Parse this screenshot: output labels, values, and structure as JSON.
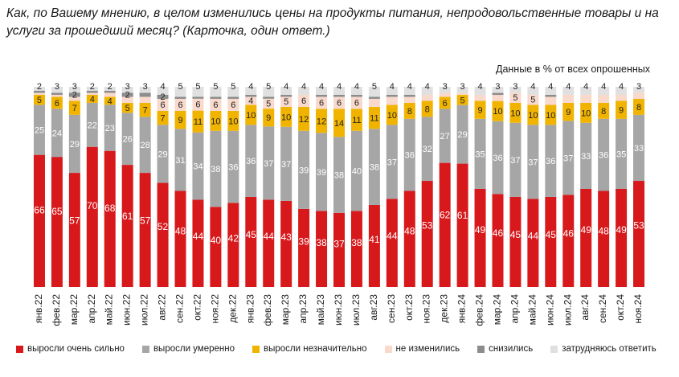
{
  "title": "Как, по Вашему мнению, в целом изменились цены на продукты питания, непродовольственные товары и на услуги за прошедший месяц? (Карточка, один ответ.)",
  "note": "Данные в % от всех опрошенных",
  "chart_data": {
    "type": "bar",
    "stacked": true,
    "ylim": [
      0,
      100
    ],
    "grid": false,
    "legend_position": "bottom",
    "categories": [
      "янв.22",
      "фев.22",
      "мар.22",
      "апр.22",
      "май.22",
      "июн.22",
      "июл.22",
      "авг.22",
      "сен.22",
      "окт.22",
      "ноя.22",
      "дек.22",
      "янв.23",
      "фев.23",
      "мар.23",
      "апр.23",
      "май.23",
      "июн.23",
      "июл.23",
      "авг.23",
      "сен.23",
      "окт.23",
      "ноя.23",
      "дек.23",
      "янв.24",
      "фев.24",
      "мар.24",
      "апр.24",
      "май.24",
      "июн.24",
      "июл.24",
      "авг.24",
      "сен.24",
      "окт.24",
      "ноя.24"
    ],
    "series": [
      {
        "name": "выросли очень сильно",
        "color": "#d7191c",
        "values": [
          66,
          65,
          57,
          70,
          68,
          61,
          57,
          52,
          48,
          44,
          40,
          42,
          45,
          44,
          43,
          39,
          38,
          37,
          38,
          41,
          44,
          48,
          53,
          62,
          61,
          49,
          46,
          45,
          44,
          45,
          46,
          49,
          48,
          49,
          53
        ]
      },
      {
        "name": "выросли умеренно",
        "color": "#a6a6a6",
        "values": [
          25,
          24,
          29,
          22,
          23,
          26,
          28,
          29,
          31,
          34,
          38,
          36,
          36,
          37,
          37,
          39,
          39,
          38,
          40,
          38,
          37,
          36,
          32,
          27,
          29,
          35,
          36,
          37,
          37,
          36,
          37,
          33,
          36,
          35,
          33
        ]
      },
      {
        "name": "выросли незначительно",
        "color": "#f0b400",
        "values": [
          5,
          6,
          7,
          4,
          4,
          5,
          7,
          7,
          9,
          11,
          10,
          10,
          10,
          9,
          10,
          12,
          12,
          14,
          11,
          11,
          10,
          8,
          8,
          6,
          5,
          9,
          10,
          10,
          10,
          10,
          9,
          10,
          8,
          9,
          8
        ]
      },
      {
        "name": "не изменились",
        "color": "#f8d9cc",
        "values": [
          1,
          1,
          2,
          1,
          2,
          3,
          3,
          6,
          6,
          6,
          6,
          6,
          4,
          5,
          5,
          6,
          6,
          6,
          6,
          4,
          4,
          3,
          3,
          2,
          1,
          3,
          3,
          5,
          5,
          4,
          4,
          4,
          4,
          3,
          3
        ]
      },
      {
        "name": "снизились",
        "color": "#8c8c8c",
        "values": [
          1,
          1,
          2,
          1,
          1,
          2,
          2,
          2,
          1,
          1,
          1,
          1,
          1,
          1,
          1,
          0,
          1,
          1,
          1,
          1,
          1,
          1,
          0,
          0,
          0,
          0,
          1,
          0,
          0,
          1,
          0,
          0,
          0,
          0,
          0
        ]
      },
      {
        "name": "затрудняюсь ответить",
        "color": "#e0e0e0",
        "values": [
          2,
          3,
          3,
          2,
          2,
          3,
          3,
          4,
          5,
          5,
          5,
          5,
          4,
          5,
          4,
          4,
          4,
          4,
          4,
          5,
          4,
          4,
          4,
          3,
          3,
          4,
          3,
          3,
          4,
          4,
          4,
          4,
          4,
          4,
          3
        ]
      }
    ],
    "labels_shown": [
      [
        true,
        true,
        true,
        true,
        true,
        true,
        true,
        true,
        true,
        true,
        true,
        true,
        true,
        true,
        true,
        true,
        true,
        true,
        true,
        true,
        true,
        true,
        true,
        true,
        true,
        true,
        true,
        true,
        true,
        true,
        true,
        true,
        true,
        true,
        true
      ],
      [
        true,
        true,
        true,
        true,
        true,
        true,
        true,
        true,
        true,
        true,
        true,
        true,
        true,
        true,
        true,
        true,
        true,
        true,
        true,
        true,
        true,
        true,
        true,
        true,
        true,
        true,
        true,
        true,
        true,
        true,
        true,
        true,
        true,
        true,
        true
      ],
      [
        true,
        true,
        true,
        true,
        true,
        true,
        true,
        true,
        true,
        true,
        true,
        true,
        true,
        true,
        true,
        true,
        true,
        true,
        true,
        true,
        true,
        true,
        true,
        true,
        true,
        true,
        true,
        true,
        true,
        true,
        true,
        true,
        true,
        true,
        true
      ],
      [
        false,
        false,
        false,
        false,
        false,
        false,
        false,
        true,
        true,
        true,
        true,
        true,
        true,
        true,
        true,
        true,
        true,
        true,
        true,
        false,
        false,
        false,
        false,
        false,
        false,
        false,
        false,
        true,
        true,
        false,
        false,
        false,
        false,
        false,
        false
      ],
      [
        false,
        false,
        true,
        false,
        false,
        true,
        false,
        true,
        false,
        false,
        false,
        false,
        false,
        false,
        false,
        false,
        false,
        false,
        false,
        false,
        false,
        false,
        false,
        false,
        false,
        false,
        false,
        false,
        false,
        false,
        false,
        false,
        false,
        false,
        false
      ],
      [
        true,
        true,
        true,
        true,
        true,
        true,
        true,
        true,
        true,
        true,
        true,
        true,
        true,
        true,
        true,
        true,
        true,
        true,
        true,
        true,
        true,
        true,
        true,
        true,
        true,
        true,
        true,
        true,
        true,
        true,
        true,
        true,
        true,
        true,
        true
      ]
    ]
  }
}
